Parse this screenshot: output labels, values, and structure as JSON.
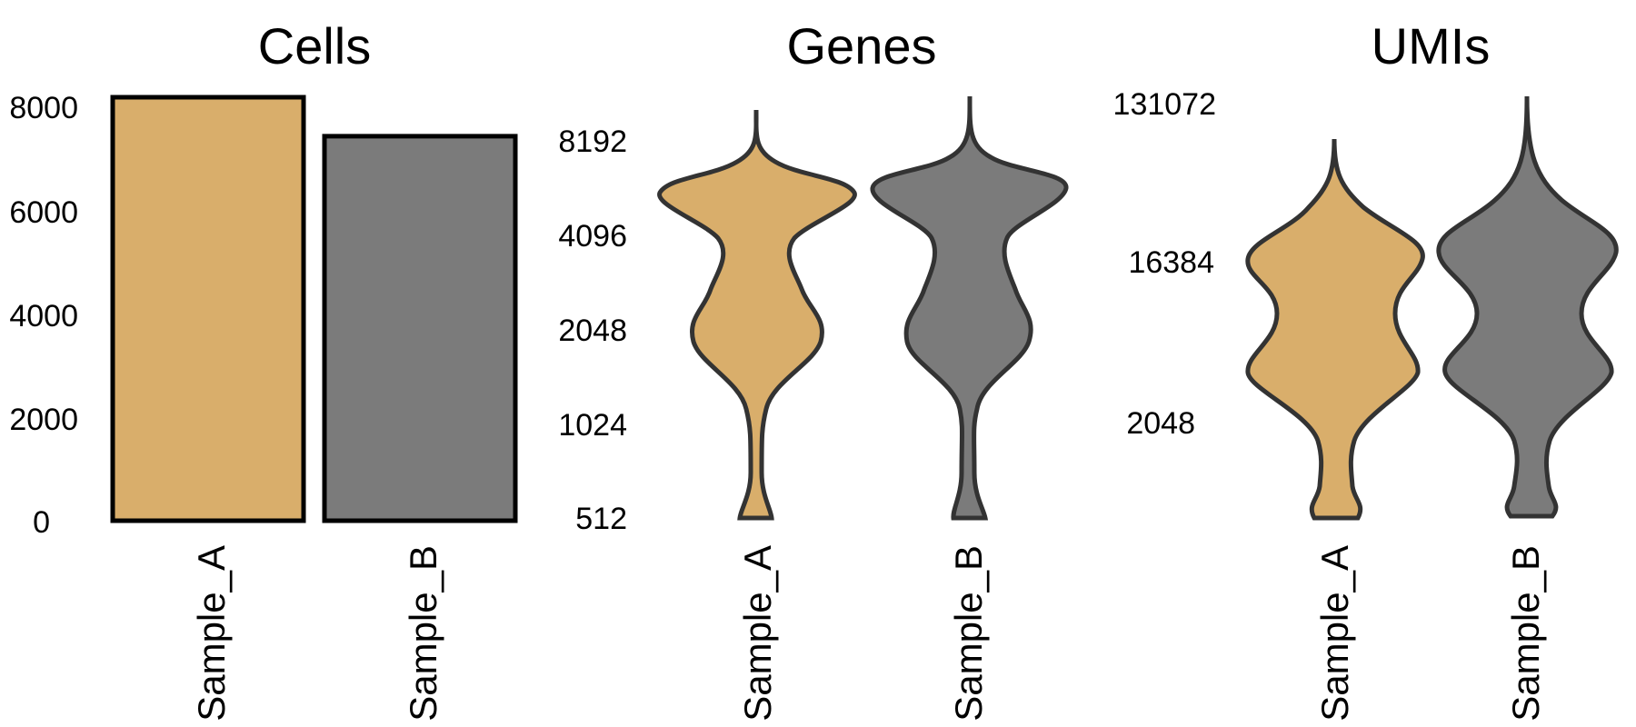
{
  "chart_data": [
    {
      "type": "bar",
      "title": "Cells",
      "categories": [
        "Sample_A",
        "Sample_B"
      ],
      "values": [
        8150,
        7400
      ],
      "yticks": [
        "0",
        "2000",
        "4000",
        "6000",
        "8000"
      ],
      "ylim": [
        0,
        8150
      ],
      "colors": [
        "#D9AE6B",
        "#7B7B7B"
      ]
    },
    {
      "type": "violin",
      "title": "Genes",
      "scale": "log2",
      "categories": [
        "Sample_A",
        "Sample_B"
      ],
      "yticks": [
        "512",
        "1024",
        "2048",
        "4096",
        "8192"
      ],
      "ranges": [
        [
          512,
          10800
        ],
        [
          512,
          11800
        ]
      ],
      "colors": [
        "#D9AE6B",
        "#7B7B7B"
      ]
    },
    {
      "type": "violin",
      "title": "UMIs",
      "scale": "log2",
      "categories": [
        "Sample_A",
        "Sample_B"
      ],
      "yticks": [
        "2048",
        "16384",
        "131072"
      ],
      "ranges": [
        [
          560,
          70000
        ],
        [
          560,
          140000
        ]
      ],
      "colors": [
        "#D9AE6B",
        "#7B7B7B"
      ]
    }
  ]
}
